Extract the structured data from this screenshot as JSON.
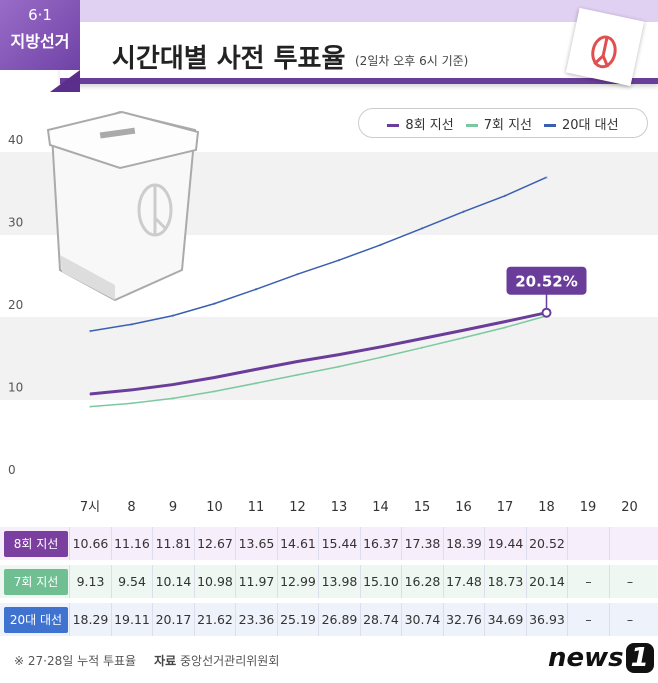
{
  "header": {
    "badge_number": "6·1",
    "badge_text": "지방선거",
    "title": "시간대별 사전 투표율",
    "subtitle": "(2일차 오후 6시 기준)"
  },
  "legend": [
    {
      "label": "8회 지선",
      "color": "#6a3d9a"
    },
    {
      "label": "7회 지선",
      "color": "#7cc8a0"
    },
    {
      "label": "20대 대선",
      "color": "#3a5fb0"
    }
  ],
  "chart_data": {
    "type": "line",
    "categories": [
      "7시",
      "8",
      "9",
      "10",
      "11",
      "12",
      "13",
      "14",
      "15",
      "16",
      "17",
      "18",
      "19",
      "20"
    ],
    "yticks": [
      "0",
      "10",
      "20",
      "30",
      "40"
    ],
    "ylim": [
      0,
      40
    ],
    "series": [
      {
        "name": "8회 지선",
        "color": "#6a3d9a",
        "values": [
          10.66,
          11.16,
          11.81,
          12.67,
          13.65,
          14.61,
          15.44,
          16.37,
          17.38,
          18.39,
          19.44,
          20.52,
          null,
          null
        ],
        "row_color": "#7b3fa0",
        "bg": "#f6eefb"
      },
      {
        "name": "7회 지선",
        "color": "#7cc8a0",
        "values": [
          9.13,
          9.54,
          10.14,
          10.98,
          11.97,
          12.99,
          13.98,
          15.1,
          16.28,
          17.48,
          18.73,
          20.14,
          null,
          null
        ],
        "row_color": "#6fbf93",
        "bg": "#eef7f1"
      },
      {
        "name": "20대 대선",
        "color": "#3a5fb0",
        "values": [
          18.29,
          19.11,
          20.17,
          21.62,
          23.36,
          25.19,
          26.89,
          28.74,
          30.74,
          32.76,
          34.69,
          36.93,
          null,
          null
        ],
        "row_color": "#3f73cf",
        "bg": "#eef2fa"
      }
    ],
    "annotation": "20.52%",
    "table_cells": [
      [
        "10.66",
        "11.16",
        "11.81",
        "12.67",
        "13.65",
        "14.61",
        "15.44",
        "16.37",
        "17.38",
        "18.39",
        "19.44",
        "20.52",
        "",
        ""
      ],
      [
        "9.13",
        "9.54",
        "10.14",
        "10.98",
        "11.97",
        "12.99",
        "13.98",
        "15.10",
        "16.28",
        "17.48",
        "18.73",
        "20.14",
        "–",
        "–"
      ],
      [
        "18.29",
        "19.11",
        "20.17",
        "21.62",
        "23.36",
        "25.19",
        "26.89",
        "28.74",
        "30.74",
        "32.76",
        "34.69",
        "36.93",
        "–",
        "–"
      ]
    ]
  },
  "footer": {
    "note": "※ 27·28일 누적 투표율",
    "source_label": "자료",
    "source": "중앙선거관리위원회"
  },
  "logo": {
    "text": "news",
    "num": "1"
  }
}
